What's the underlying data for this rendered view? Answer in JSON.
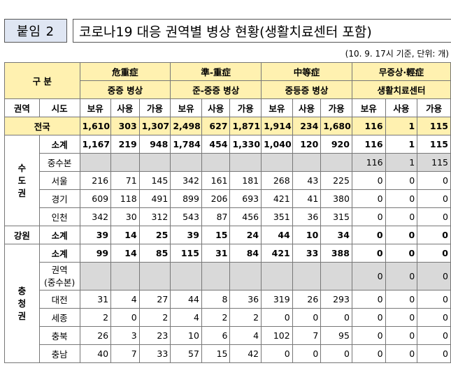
{
  "attachment_label": "붙임 2",
  "title": "코로나19 대응 권역별 병상 현황(생활치료센터 포함)",
  "note": "(10. 9. 17시 기준, 단위: 개)",
  "header": {
    "gubun": "구 분",
    "groups": [
      "危重症",
      "準-重症",
      "中等症",
      "무증상·輕症"
    ],
    "subgroups": [
      "중증 병상",
      "준-중증 병상",
      "중등증 병상",
      "생활치료센터"
    ],
    "region_col": "권역",
    "city_col": "시도",
    "cols": [
      "보유",
      "사용",
      "가용"
    ]
  },
  "national": {
    "label": "전국",
    "values": [
      "1,610",
      "303",
      "1,307",
      "2,498",
      "627",
      "1,871",
      "1,914",
      "234",
      "1,680",
      "116",
      "1",
      "115"
    ]
  },
  "capital": {
    "region": [
      "수",
      "도",
      "권"
    ],
    "subtotal": {
      "label": "소계",
      "values": [
        "1,167",
        "219",
        "948",
        "1,784",
        "454",
        "1,330",
        "1,040",
        "120",
        "920",
        "116",
        "1",
        "115"
      ]
    },
    "central": {
      "label": "중수본",
      "values": [
        "116",
        "1",
        "115"
      ]
    },
    "rows": [
      {
        "label": "서울",
        "values": [
          "216",
          "71",
          "145",
          "342",
          "161",
          "181",
          "268",
          "43",
          "225",
          "0",
          "0",
          "0"
        ]
      },
      {
        "label": "경기",
        "values": [
          "609",
          "118",
          "491",
          "899",
          "206",
          "693",
          "421",
          "41",
          "380",
          "0",
          "0",
          "0"
        ]
      },
      {
        "label": "인천",
        "values": [
          "342",
          "30",
          "312",
          "543",
          "87",
          "456",
          "351",
          "36",
          "315",
          "0",
          "0",
          "0"
        ]
      }
    ]
  },
  "gangwon": {
    "region": "강원",
    "label": "소계",
    "values": [
      "39",
      "14",
      "25",
      "39",
      "15",
      "24",
      "44",
      "10",
      "34",
      "0",
      "0",
      "0"
    ]
  },
  "chungcheong": {
    "region": [
      "충",
      "청",
      "권"
    ],
    "subtotal": {
      "label": "소계",
      "values": [
        "99",
        "14",
        "85",
        "115",
        "31",
        "84",
        "421",
        "33",
        "388",
        "0",
        "0",
        "0"
      ]
    },
    "central": {
      "label": [
        "권역",
        "(중수본)"
      ],
      "values": [
        "0",
        "0",
        "0"
      ]
    },
    "rows": [
      {
        "label": "대전",
        "values": [
          "31",
          "4",
          "27",
          "44",
          "8",
          "36",
          "319",
          "26",
          "293",
          "0",
          "0",
          "0"
        ]
      },
      {
        "label": "세종",
        "values": [
          "2",
          "0",
          "2",
          "4",
          "2",
          "2",
          "0",
          "0",
          "0",
          "0",
          "0",
          "0"
        ]
      },
      {
        "label": "충북",
        "values": [
          "26",
          "3",
          "23",
          "10",
          "6",
          "4",
          "102",
          "7",
          "95",
          "0",
          "0",
          "0"
        ]
      },
      {
        "label": "충남",
        "values": [
          "40",
          "7",
          "33",
          "57",
          "15",
          "42",
          "0",
          "0",
          "0",
          "0",
          "0",
          "0"
        ]
      }
    ]
  }
}
